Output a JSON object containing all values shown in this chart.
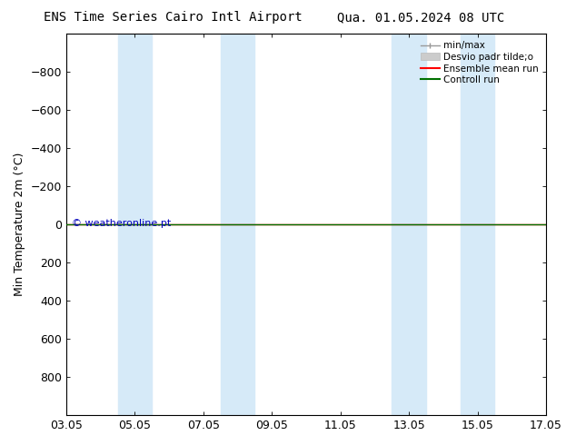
{
  "title_left": "ENS Time Series Cairo Intl Airport",
  "title_right": "Qua. 01.05.2024 08 UTC",
  "ylabel": "Min Temperature 2m (°C)",
  "ylim_bottom": -1000,
  "ylim_top": 1000,
  "yticks": [
    -800,
    -600,
    -400,
    -200,
    0,
    200,
    400,
    600,
    800
  ],
  "xtick_labels": [
    "03.05",
    "05.05",
    "07.05",
    "09.05",
    "11.05",
    "13.05",
    "15.05",
    "17.05"
  ],
  "xtick_positions": [
    0,
    2,
    4,
    6,
    8,
    10,
    12,
    14
  ],
  "xlim": [
    0,
    14
  ],
  "shaded_regions": [
    [
      1.5,
      2.5
    ],
    [
      4.5,
      5.5
    ],
    [
      9.5,
      10.5
    ],
    [
      11.5,
      12.5
    ]
  ],
  "shaded_color": "#d6eaf8",
  "control_run_y": 0.0,
  "ensemble_mean_y": 0.0,
  "control_run_color": "#007000",
  "ensemble_mean_color": "#ff0000",
  "minmax_color": "#999999",
  "std_color": "#cccccc",
  "watermark": "© weatheronline.pt",
  "watermark_color": "#0000bb",
  "background_color": "#ffffff",
  "legend_entries": [
    "min/max",
    "Desvio padr tilde;o",
    "Ensemble mean run",
    "Controll run"
  ],
  "legend_colors": [
    "#999999",
    "#cccccc",
    "#ff0000",
    "#007000"
  ],
  "font_size": 9,
  "title_fontsize": 10
}
